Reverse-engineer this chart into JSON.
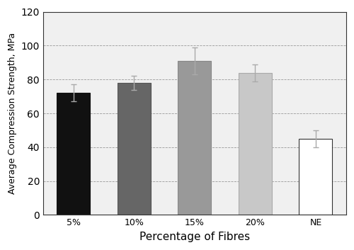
{
  "categories": [
    "5%",
    "10%",
    "15%",
    "20%",
    "NE"
  ],
  "values": [
    72,
    78,
    91,
    84,
    45
  ],
  "errors": [
    5,
    4,
    8,
    5,
    5
  ],
  "bar_colors": [
    "#111111",
    "#666666",
    "#999999",
    "#c8c8c8",
    "#ffffff"
  ],
  "bar_edgecolors": [
    "#111111",
    "#555555",
    "#888888",
    "#aaaaaa",
    "#333333"
  ],
  "xlabel": "Percentage of Fibres",
  "ylabel": "Average Compression Strength, MPa",
  "ylim": [
    0,
    120
  ],
  "yticks": [
    0,
    20,
    40,
    60,
    80,
    100,
    120
  ],
  "grid_color": "#999999",
  "background_color": "#ffffff",
  "plot_bg_color": "#f0f0f0",
  "bar_width": 0.55,
  "ecolor": "#aaaaaa",
  "capsize": 3,
  "xlabel_fontsize": 11,
  "ylabel_fontsize": 9,
  "tick_fontsize": 9
}
